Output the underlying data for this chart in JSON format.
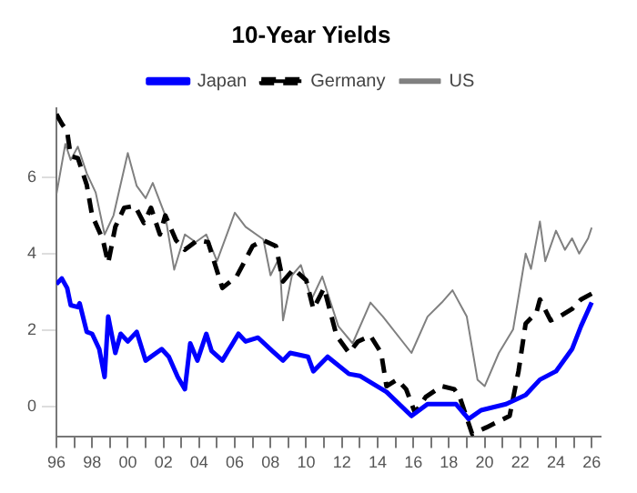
{
  "chart_data": {
    "type": "line",
    "title": "10-Year Yields",
    "xlim": [
      1996,
      2026.5
    ],
    "xticks": [
      {
        "value": 1996,
        "label": "96"
      },
      {
        "value": 1997,
        "label": null
      },
      {
        "value": 1998,
        "label": "98"
      },
      {
        "value": 1999,
        "label": null
      },
      {
        "value": 2000,
        "label": "00"
      },
      {
        "value": 2001,
        "label": null
      },
      {
        "value": 2002,
        "label": "02"
      },
      {
        "value": 2003,
        "label": null
      },
      {
        "value": 2004,
        "label": "04"
      },
      {
        "value": 2005,
        "label": null
      },
      {
        "value": 2006,
        "label": "06"
      },
      {
        "value": 2007,
        "label": null
      },
      {
        "value": 2008,
        "label": "08"
      },
      {
        "value": 2009,
        "label": null
      },
      {
        "value": 2010,
        "label": "10"
      },
      {
        "value": 2011,
        "label": null
      },
      {
        "value": 2012,
        "label": "12"
      },
      {
        "value": 2013,
        "label": null
      },
      {
        "value": 2014,
        "label": "14"
      },
      {
        "value": 2015,
        "label": null
      },
      {
        "value": 2016,
        "label": "16"
      },
      {
        "value": 2017,
        "label": null
      },
      {
        "value": 2018,
        "label": "18"
      },
      {
        "value": 2019,
        "label": null
      },
      {
        "value": 2020,
        "label": "20"
      },
      {
        "value": 2021,
        "label": null
      },
      {
        "value": 2022,
        "label": "22"
      },
      {
        "value": 2023,
        "label": null
      },
      {
        "value": 2024,
        "label": "24"
      },
      {
        "value": 2025,
        "label": null
      },
      {
        "value": 2026,
        "label": "26"
      }
    ],
    "ylim": [
      -0.8,
      7.8
    ],
    "yticks": [
      0,
      2,
      4,
      6
    ],
    "grid": false,
    "legend": "top",
    "marker": "none",
    "series": [
      {
        "name": "Japan",
        "color": "#0000ff",
        "line_style": "solid",
        "x": [
          1996,
          1996.3,
          1996.6,
          1996.8,
          1997.2,
          1997.3,
          1997.7,
          1998,
          1998.4,
          1998.7,
          1998.9,
          1999.3,
          1999.6,
          2000,
          2000.5,
          2001,
          2001.9,
          2002.3,
          2002.8,
          2003.2,
          2003.5,
          2003.9,
          2004.4,
          2004.7,
          2005.3,
          2006.2,
          2006.6,
          2007.3,
          2008.1,
          2008.7,
          2009.1,
          2010.1,
          2010.4,
          2011.2,
          2012.4,
          2013,
          2014.5,
          2015.9,
          2016.8,
          2018.4,
          2019.1,
          2019.8,
          2021.2,
          2022.3,
          2023.1,
          2024,
          2024.9,
          2025.4,
          2026
        ],
        "values": [
          3.2,
          3.35,
          3.1,
          2.65,
          2.6,
          2.7,
          1.95,
          1.9,
          1.5,
          0.77,
          2.35,
          1.4,
          1.9,
          1.7,
          1.95,
          1.2,
          1.5,
          1.3,
          0.77,
          0.45,
          1.65,
          1.2,
          1.9,
          1.45,
          1.2,
          1.9,
          1.7,
          1.8,
          1.45,
          1.2,
          1.4,
          1.3,
          0.92,
          1.3,
          0.85,
          0.8,
          0.38,
          -0.25,
          0.06,
          0.06,
          -0.33,
          -0.1,
          0.06,
          0.3,
          0.7,
          0.92,
          1.5,
          2.1,
          2.72
        ]
      },
      {
        "name": "Germany",
        "color": "#000000",
        "line_style": "dashed",
        "x": [
          1996,
          1996.3,
          1996.6,
          1996.8,
          1997.2,
          1997.7,
          1998,
          1998.6,
          1998.9,
          1999.3,
          1999.8,
          2000.4,
          2000.9,
          2001.3,
          2001.8,
          2002.1,
          2002.7,
          2003.2,
          2003.9,
          2004.5,
          2005.3,
          2006.1,
          2007,
          2007.6,
          2008.3,
          2008.7,
          2009.3,
          2010,
          2010.4,
          2011,
          2011.7,
          2012.4,
          2012.9,
          2013.6,
          2014.2,
          2014.5,
          2015.1,
          2015.6,
          2016.1,
          2016.7,
          2017.6,
          2018.3,
          2018.6,
          2019.3,
          2020.1,
          2021.4,
          2021.9,
          2022.3,
          2022.9,
          2023.1,
          2023.7,
          2024.2,
          2024.9,
          2025.4,
          2026
        ],
        "values": [
          7.65,
          7.4,
          7.2,
          6.55,
          6.5,
          5.8,
          5.0,
          4.37,
          3.75,
          4.7,
          5.2,
          5.25,
          4.8,
          5.2,
          4.5,
          5.0,
          4.35,
          4.1,
          4.35,
          4.3,
          3.1,
          3.4,
          4.2,
          4.35,
          4.2,
          3.27,
          3.6,
          3.3,
          2.55,
          3.1,
          1.85,
          1.4,
          1.7,
          1.85,
          1.4,
          0.53,
          0.7,
          0.45,
          -0.17,
          0.25,
          0.53,
          0.45,
          0.25,
          -0.72,
          -0.55,
          -0.25,
          0.92,
          2.17,
          2.45,
          2.8,
          2.25,
          2.35,
          2.55,
          2.8,
          2.95
        ]
      },
      {
        "name": "US",
        "color": "#808080",
        "line_style": "solid",
        "x": [
          1996,
          1996.5,
          1996.8,
          1997.2,
          1997.7,
          1998.2,
          1998.7,
          1999.2,
          2000,
          2000.5,
          2001,
          2001.4,
          2002.1,
          2002.6,
          2003.2,
          2003.8,
          2004.4,
          2005,
          2006,
          2006.6,
          2007.6,
          2008,
          2008.5,
          2008.7,
          2009.2,
          2009.7,
          2010.3,
          2010.9,
          2011.8,
          2012.6,
          2013.6,
          2014.3,
          2015.9,
          2016.8,
          2017.6,
          2018.2,
          2019,
          2019.6,
          2020,
          2020.8,
          2021.6,
          2022.1,
          2022.3,
          2022.6,
          2023.1,
          2023.4,
          2024,
          2024.5,
          2024.9,
          2025.3,
          2025.8,
          2026
        ],
        "values": [
          5.55,
          6.87,
          6.45,
          6.8,
          6.1,
          5.6,
          4.5,
          5.0,
          6.63,
          5.77,
          5.45,
          5.85,
          5.0,
          3.58,
          4.5,
          4.3,
          4.5,
          3.8,
          5.07,
          4.7,
          4.37,
          3.43,
          3.9,
          2.25,
          3.43,
          3.7,
          2.8,
          3.4,
          2.1,
          1.65,
          2.72,
          2.35,
          1.4,
          2.35,
          2.72,
          3.04,
          2.35,
          0.7,
          0.53,
          1.4,
          2.02,
          3.43,
          4.0,
          3.6,
          4.84,
          3.8,
          4.6,
          4.1,
          4.4,
          4.0,
          4.4,
          4.68
        ]
      }
    ]
  }
}
